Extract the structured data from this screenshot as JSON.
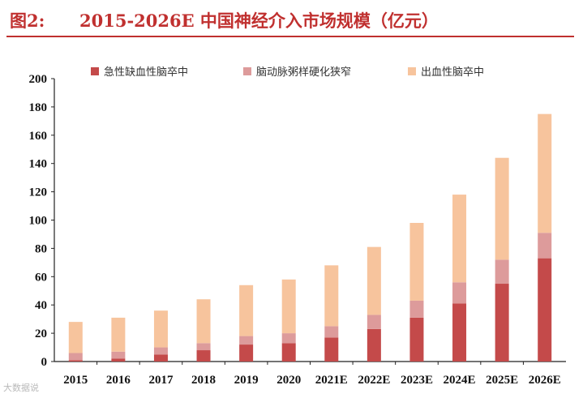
{
  "figure": {
    "number_label": "图2:",
    "title": "2015-2026E 中国神经介入市场规模（亿元）"
  },
  "watermark": "大数据说",
  "colors": {
    "title": "#c0302f",
    "series": [
      "#c44a4a",
      "#dd9b9b",
      "#f7c49d"
    ]
  },
  "chart_data": {
    "type": "bar",
    "stacked": true,
    "title": "2015-2026E 中国神经介入市场规模（亿元）",
    "xlabel": "",
    "ylabel": "",
    "ylim": [
      0,
      200
    ],
    "yticks": [
      0,
      20,
      40,
      60,
      80,
      100,
      120,
      140,
      160,
      180,
      200
    ],
    "grid": false,
    "legend_position": "top",
    "categories": [
      "2015",
      "2016",
      "2017",
      "2018",
      "2019",
      "2020",
      "2021E",
      "2022E",
      "2023E",
      "2024E",
      "2025E",
      "2026E"
    ],
    "series": [
      {
        "name": "急性缺血性脑卒中",
        "values": [
          1,
          2,
          5,
          8,
          12,
          13,
          17,
          23,
          31,
          41,
          55,
          73
        ]
      },
      {
        "name": "脑动脉粥样硬化狭窄",
        "values": [
          5,
          5,
          5,
          5,
          6,
          7,
          8,
          10,
          12,
          15,
          17,
          18
        ]
      },
      {
        "name": "出血性脑卒中",
        "values": [
          22,
          24,
          26,
          31,
          36,
          38,
          43,
          48,
          55,
          62,
          72,
          84
        ]
      }
    ]
  }
}
